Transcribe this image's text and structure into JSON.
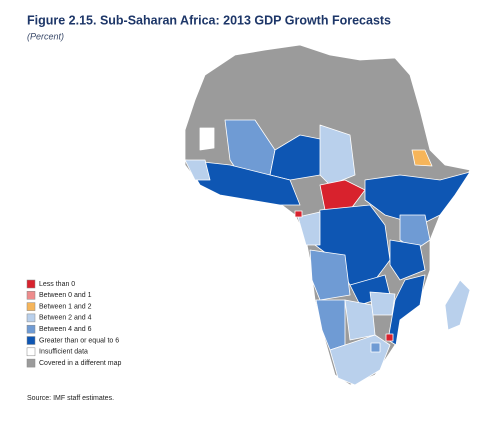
{
  "header": {
    "title": "Figure 2.15.  Sub-Saharan Africa: 2013 GDP Growth Forecasts",
    "subtitle": "(Percent)"
  },
  "legend": {
    "items": [
      {
        "label": "Less than 0",
        "color": "#d8222d"
      },
      {
        "label": "Between 0 and 1",
        "color": "#ee8c8c"
      },
      {
        "label": "Between 1 and 2",
        "color": "#f6b55a"
      },
      {
        "label": "Between 2 and 4",
        "color": "#b9d0ec"
      },
      {
        "label": "Between 4 and 6",
        "color": "#6f9bd4"
      },
      {
        "label": "Greater than or equal to 6",
        "color": "#0e56b3"
      },
      {
        "label": "Insufficient data",
        "color": "#ffffff"
      },
      {
        "label": "Covered in a different map",
        "color": "#9b9b9b"
      }
    ]
  },
  "source": "Source: IMF staff estimates."
}
